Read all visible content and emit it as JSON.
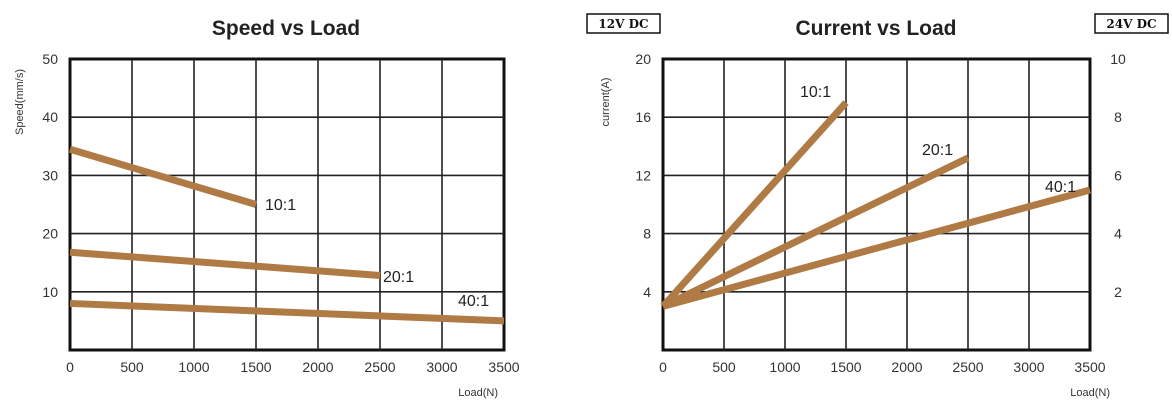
{
  "chart_data": [
    {
      "type": "line",
      "title": "Speed vs Load",
      "xlabel": "Load(N)",
      "ylabel": "Speed(mm/s)",
      "xlim": [
        0,
        3500
      ],
      "ylim": [
        0,
        50
      ],
      "xticks": [
        "0",
        "500",
        "1000",
        "1500",
        "2000",
        "2500",
        "3000",
        "3500"
      ],
      "yticks": [
        "10",
        "20",
        "30",
        "40",
        "50"
      ],
      "grid": true,
      "series_color": "#b07a45",
      "series": [
        {
          "name": "10:1",
          "x": [
            0,
            1500
          ],
          "y": [
            34.5,
            25
          ]
        },
        {
          "name": "20:1",
          "x": [
            0,
            2500
          ],
          "y": [
            16.8,
            12.8
          ]
        },
        {
          "name": "40:1",
          "x": [
            0,
            3500
          ],
          "y": [
            8.0,
            5.0
          ]
        }
      ]
    },
    {
      "type": "line",
      "title": "Current vs Load",
      "xlabel": "Load(N)",
      "ylabel": "current(A)",
      "xlim": [
        0,
        3500
      ],
      "ylim": [
        0,
        20
      ],
      "y2lim": [
        0,
        10
      ],
      "xticks": [
        "0",
        "500",
        "1000",
        "1500",
        "2000",
        "2500",
        "3000",
        "3500"
      ],
      "yticks": [
        "4",
        "8",
        "12",
        "16",
        "20"
      ],
      "y2ticks": [
        "2",
        "4",
        "6",
        "8",
        "10"
      ],
      "left_badge": "12V DC",
      "right_badge": "24V DC",
      "grid": true,
      "series_color": "#b07a45",
      "series": [
        {
          "name": "10:1",
          "x": [
            0,
            1500
          ],
          "y": [
            3.0,
            17.0
          ]
        },
        {
          "name": "20:1",
          "x": [
            0,
            2500
          ],
          "y": [
            3.0,
            13.2
          ]
        },
        {
          "name": "40:1",
          "x": [
            0,
            3500
          ],
          "y": [
            3.0,
            11.0
          ]
        }
      ]
    }
  ]
}
